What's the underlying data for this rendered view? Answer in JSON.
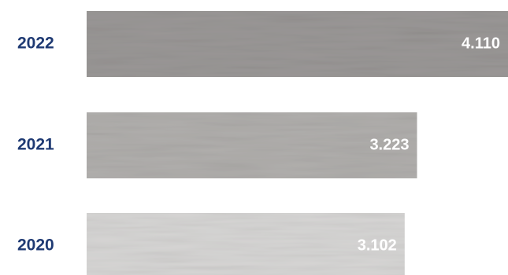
{
  "chart_data": {
    "type": "bar",
    "orientation": "horizontal",
    "categories": [
      "2022",
      "2021",
      "2020"
    ],
    "values": [
      4110,
      3223,
      3102
    ],
    "value_labels": [
      "4.110",
      "3.223",
      "3.102"
    ],
    "title": "",
    "xlabel": "",
    "ylabel": "",
    "grid": false,
    "legend": "none"
  },
  "colors": {
    "category_text": "#1f3a73",
    "value_text": "#ffffff",
    "bars": [
      "#9a9796",
      "#b0aeac",
      "#d6d5d4"
    ]
  }
}
